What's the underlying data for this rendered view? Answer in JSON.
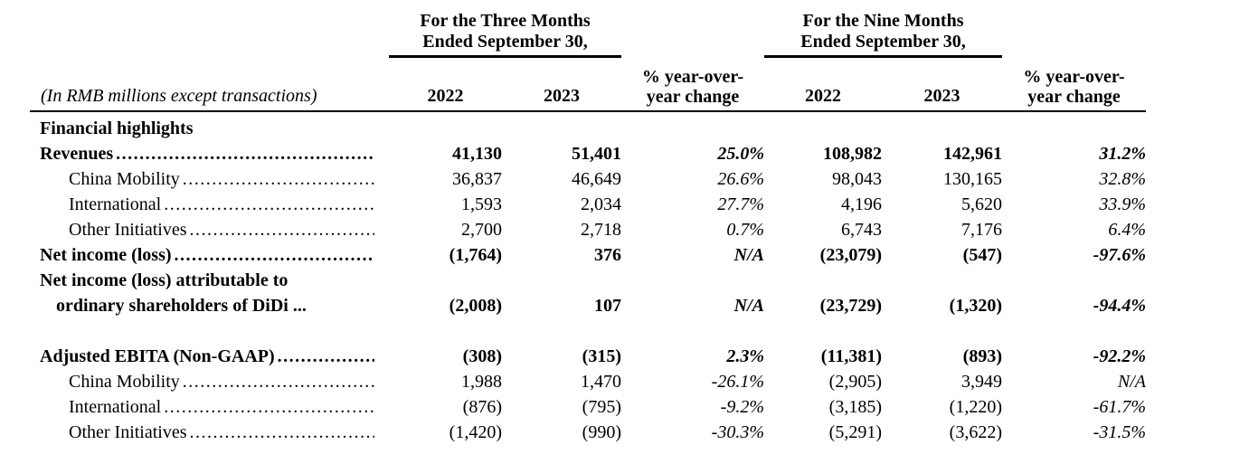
{
  "page": {
    "background": "#ffffff",
    "text_color": "#000000"
  },
  "table": {
    "unit_note": "(In RMB millions except transactions)",
    "groups": [
      {
        "line1": "For the Three Months",
        "line2": "Ended September 30,"
      },
      {
        "line1": "For the Nine Months",
        "line2": "Ended September 30,"
      }
    ],
    "columns": [
      {
        "label": "2022"
      },
      {
        "label": "2023"
      },
      {
        "label_line1": "% year-over-",
        "label_line2": "year change"
      },
      {
        "label": "2022"
      },
      {
        "label": "2023"
      },
      {
        "label_line1": "% year-over-",
        "label_line2": "year change"
      }
    ],
    "rows": [
      {
        "label": "Financial highlights",
        "bold": true,
        "indent": 0,
        "leader": false,
        "values": [
          "",
          "",
          "",
          "",
          "",
          ""
        ]
      },
      {
        "label": "Revenues",
        "bold": true,
        "indent": 0,
        "leader": true,
        "values": [
          "41,130",
          "51,401",
          "25.0%",
          "108,982",
          "142,961",
          "31.2%"
        ]
      },
      {
        "label": "China Mobility",
        "bold": false,
        "indent": 1,
        "leader": true,
        "values": [
          "36,837",
          "46,649",
          "26.6%",
          "98,043",
          "130,165",
          "32.8%"
        ]
      },
      {
        "label": "International",
        "bold": false,
        "indent": 1,
        "leader": true,
        "values": [
          "1,593",
          "2,034",
          "27.7%",
          "4,196",
          "5,620",
          "33.9%"
        ]
      },
      {
        "label": "Other Initiatives",
        "bold": false,
        "indent": 1,
        "leader": true,
        "values": [
          "2,700",
          "2,718",
          "0.7%",
          "6,743",
          "7,176",
          "6.4%"
        ]
      },
      {
        "label": "Net income (loss)",
        "bold": true,
        "indent": 0,
        "leader": true,
        "values": [
          "(1,764)",
          "376",
          "N/A",
          "(23,079)",
          "(547)",
          "-97.6%"
        ]
      },
      {
        "label": "Net income (loss) attributable to",
        "label_line2": "ordinary shareholders of DiDi ...",
        "bold": true,
        "indent": 0,
        "leader": false,
        "values": [
          "(2,008)",
          "107",
          "N/A",
          "(23,729)",
          "(1,320)",
          "-94.4%"
        ]
      },
      {
        "spacer": true
      },
      {
        "label": "Adjusted EBITA (Non-GAAP)",
        "bold": true,
        "indent": 0,
        "leader": true,
        "values": [
          "(308)",
          "(315)",
          "2.3%",
          "(11,381)",
          "(893)",
          "-92.2%"
        ]
      },
      {
        "label": "China Mobility",
        "bold": false,
        "indent": 1,
        "leader": true,
        "values": [
          "1,988",
          "1,470",
          "-26.1%",
          "(2,905)",
          "3,949",
          "N/A"
        ]
      },
      {
        "label": "International",
        "bold": false,
        "indent": 1,
        "leader": true,
        "values": [
          "(876)",
          "(795)",
          "-9.2%",
          "(3,185)",
          "(1,220)",
          "-61.7%"
        ]
      },
      {
        "label": "Other Initiatives",
        "bold": false,
        "indent": 1,
        "leader": true,
        "values": [
          "(1,420)",
          "(990)",
          "-30.3%",
          "(5,291)",
          "(3,622)",
          "-31.5%"
        ]
      }
    ]
  }
}
